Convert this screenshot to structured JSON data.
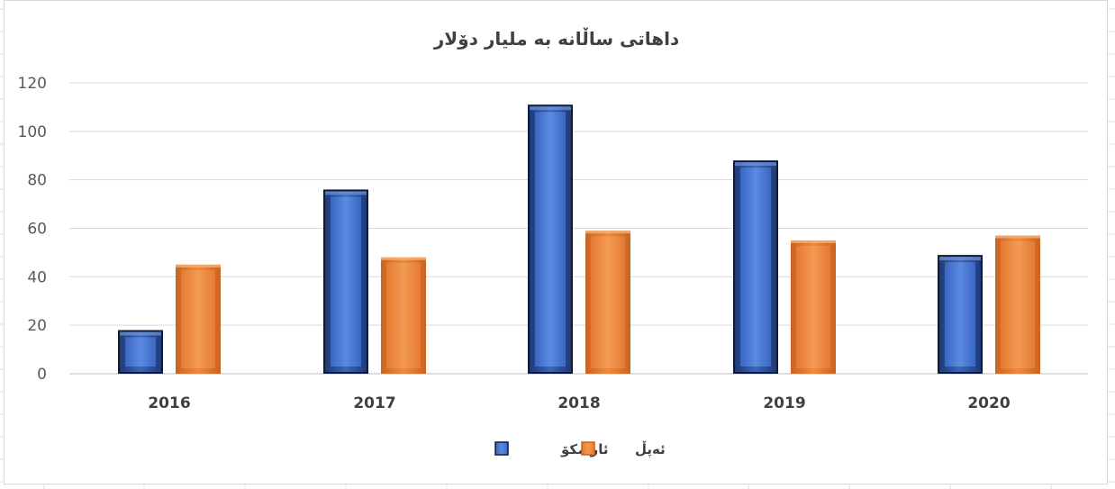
{
  "chart_data": {
    "type": "bar",
    "title": "داهاتی ساڵانە بە ملیار دۆلار",
    "categories": [
      "2016",
      "2017",
      "2018",
      "2019",
      "2020"
    ],
    "series": [
      {
        "name": "ئارامکۆ",
        "values": [
          18,
          76,
          111,
          88,
          49
        ],
        "color": "#4472c4"
      },
      {
        "name": "ئەپڵ",
        "values": [
          45,
          48,
          59,
          55,
          57
        ],
        "color": "#ed7d31"
      }
    ],
    "ylim": [
      0,
      120
    ],
    "yticks": [
      0,
      20,
      40,
      60,
      80,
      100,
      120
    ],
    "grid": true,
    "legend_position": "bottom"
  }
}
